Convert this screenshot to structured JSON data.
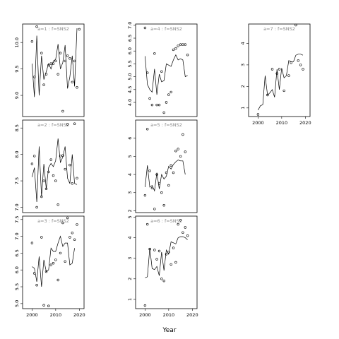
{
  "chart_data": {
    "type": "scatter",
    "xlabel": "Year",
    "xlim": [
      1996,
      2022
    ],
    "xticks": [
      2000,
      2010,
      2020
    ],
    "panels": [
      {
        "id": "a1",
        "title": "a=1 : f=SNS2",
        "ylim": [
          8.6,
          10.35
        ],
        "yticks": [
          9.0,
          9.5,
          10.0
        ],
        "points": [
          [
            2000,
            10.02
          ],
          [
            2001,
            9.35
          ],
          [
            2002,
            10.3
          ],
          [
            2004,
            9.8
          ],
          [
            2005,
            9.2
          ],
          [
            2006,
            9.4
          ],
          [
            2007,
            9.57
          ],
          [
            2008,
            9.6
          ],
          [
            2009,
            9.6
          ],
          [
            2010,
            9.65
          ],
          [
            2011,
            9.4
          ],
          [
            2012,
            9.8
          ],
          [
            2013,
            8.7
          ],
          [
            2014,
            9.65
          ],
          [
            2015,
            9.75
          ],
          [
            2016,
            9.7
          ],
          [
            2017,
            9.25
          ],
          [
            2018,
            9.65
          ],
          [
            2019,
            9.15
          ],
          [
            2020,
            10.25
          ]
        ],
        "line": [
          [
            2000,
            9.6
          ],
          [
            2001,
            8.97
          ],
          [
            2002,
            10.13
          ],
          [
            2003,
            9.0
          ],
          [
            2004,
            9.75
          ],
          [
            2005,
            9.3
          ],
          [
            2006,
            9.45
          ],
          [
            2007,
            9.6
          ],
          [
            2008,
            9.5
          ],
          [
            2009,
            9.65
          ],
          [
            2010,
            9.68
          ],
          [
            2011,
            9.97
          ],
          [
            2012,
            9.5
          ],
          [
            2013,
            9.62
          ],
          [
            2014,
            9.95
          ],
          [
            2015,
            9.13
          ],
          [
            2016,
            9.35
          ],
          [
            2017,
            9.75
          ],
          [
            2018,
            9.17
          ],
          [
            2019,
            10.27
          ]
        ]
      },
      {
        "id": "a4",
        "title": "a=4 : f=SNS2",
        "ylim": [
          3.45,
          7.05
        ],
        "yticks": [
          4.0,
          4.5,
          5.0,
          5.5,
          6.0,
          6.5,
          7.0
        ],
        "points": [
          [
            2000,
            6.9
          ],
          [
            2001,
            5.15
          ],
          [
            2002,
            4.15
          ],
          [
            2003,
            3.9
          ],
          [
            2004,
            5.9
          ],
          [
            2005,
            3.9
          ],
          [
            2006,
            3.9
          ],
          [
            2007,
            5.2
          ],
          [
            2008,
            3.6
          ],
          [
            2009,
            4.0
          ],
          [
            2010,
            4.3
          ],
          [
            2011,
            4.4
          ],
          [
            2012,
            6.05
          ],
          [
            2013,
            6.1
          ],
          [
            2014,
            6.2
          ],
          [
            2015,
            6.25
          ],
          [
            2016,
            6.25
          ],
          [
            2017,
            6.25
          ],
          [
            2018,
            5.85
          ]
        ],
        "line": [
          [
            2000,
            5.8
          ],
          [
            2001,
            4.7
          ],
          [
            2002,
            4.5
          ],
          [
            2003,
            4.4
          ],
          [
            2004,
            5.3
          ],
          [
            2005,
            4.3
          ],
          [
            2006,
            5.1
          ],
          [
            2007,
            4.8
          ],
          [
            2008,
            4.85
          ],
          [
            2009,
            5.5
          ],
          [
            2010,
            5.45
          ],
          [
            2011,
            5.4
          ],
          [
            2012,
            5.65
          ],
          [
            2013,
            5.85
          ],
          [
            2014,
            5.65
          ],
          [
            2015,
            5.7
          ],
          [
            2016,
            5.65
          ],
          [
            2017,
            5.0
          ],
          [
            2018,
            5.05
          ]
        ]
      },
      {
        "id": "a7",
        "title": "a=7 : f=SNS2",
        "ylim": [
          0.6,
          4.9
        ],
        "yticks": [
          1,
          2,
          3,
          4
        ],
        "points": [
          [
            2000,
            0.7
          ],
          [
            2004,
            1.6
          ],
          [
            2006,
            2.8
          ],
          [
            2008,
            2.6
          ],
          [
            2009,
            2.8
          ],
          [
            2011,
            1.8
          ],
          [
            2013,
            2.5
          ],
          [
            2014,
            3.1
          ],
          [
            2016,
            4.85
          ],
          [
            2017,
            3.2
          ],
          [
            2018,
            3.0
          ],
          [
            2019,
            2.8
          ]
        ],
        "line": [
          [
            2000,
            0.9
          ],
          [
            2001,
            1.1
          ],
          [
            2002,
            1.15
          ],
          [
            2003,
            2.5
          ],
          [
            2004,
            1.6
          ],
          [
            2005,
            1.7
          ],
          [
            2006,
            1.85
          ],
          [
            2007,
            1.5
          ],
          [
            2008,
            2.8
          ],
          [
            2009,
            1.85
          ],
          [
            2010,
            2.85
          ],
          [
            2011,
            2.4
          ],
          [
            2012,
            2.5
          ],
          [
            2013,
            3.2
          ],
          [
            2014,
            3.15
          ],
          [
            2015,
            3.15
          ],
          [
            2016,
            3.45
          ],
          [
            2017,
            3.5
          ],
          [
            2018,
            3.5
          ],
          [
            2019,
            3.45
          ]
        ]
      },
      {
        "id": "a2",
        "title": "a=2 : f=SNS2",
        "ylim": [
          6.9,
          8.65
        ],
        "yticks": [
          7.0,
          7.5,
          8.0,
          8.5
        ],
        "points": [
          [
            2000,
            7.82
          ],
          [
            2001,
            7.97
          ],
          [
            2002,
            7.0
          ],
          [
            2004,
            7.2
          ],
          [
            2005,
            7.5
          ],
          [
            2006,
            7.35
          ],
          [
            2007,
            7.67
          ],
          [
            2008,
            7.9
          ],
          [
            2009,
            7.6
          ],
          [
            2010,
            7.5
          ],
          [
            2011,
            7.05
          ],
          [
            2012,
            7.97
          ],
          [
            2013,
            7.98
          ],
          [
            2014,
            7.72
          ],
          [
            2015,
            8.57
          ],
          [
            2016,
            7.8
          ],
          [
            2017,
            7.45
          ],
          [
            2018,
            8.58
          ],
          [
            2019,
            7.55
          ]
        ],
        "line": [
          [
            2000,
            7.57
          ],
          [
            2001,
            7.75
          ],
          [
            2002,
            7.1
          ],
          [
            2003,
            8.15
          ],
          [
            2004,
            7.2
          ],
          [
            2005,
            7.82
          ],
          [
            2006,
            7.35
          ],
          [
            2007,
            7.75
          ],
          [
            2008,
            7.83
          ],
          [
            2009,
            7.77
          ],
          [
            2010,
            7.88
          ],
          [
            2011,
            8.3
          ],
          [
            2012,
            7.85
          ],
          [
            2013,
            7.95
          ],
          [
            2014,
            8.15
          ],
          [
            2015,
            7.55
          ],
          [
            2016,
            7.45
          ],
          [
            2017,
            8.0
          ],
          [
            2018,
            7.45
          ],
          [
            2019,
            7.43
          ]
        ]
      },
      {
        "id": "a5",
        "title": "a=5 : f=SNS2",
        "ylim": [
          1.9,
          7.0
        ],
        "yticks": [
          2,
          3,
          4,
          5,
          6
        ],
        "points": [
          [
            2000,
            2.85
          ],
          [
            2001,
            6.5
          ],
          [
            2002,
            4.2
          ],
          [
            2003,
            3.25
          ],
          [
            2004,
            2.1
          ],
          [
            2005,
            4.0
          ],
          [
            2006,
            3.5
          ],
          [
            2007,
            3.0
          ],
          [
            2008,
            2.3
          ],
          [
            2009,
            4.1
          ],
          [
            2010,
            3.4
          ],
          [
            2011,
            4.5
          ],
          [
            2012,
            4.1
          ],
          [
            2013,
            5.3
          ],
          [
            2014,
            5.4
          ],
          [
            2015,
            5.0
          ],
          [
            2016,
            6.2
          ],
          [
            2017,
            5.25
          ]
        ],
        "line": [
          [
            2000,
            3.3
          ],
          [
            2001,
            4.5
          ],
          [
            2002,
            3.3
          ],
          [
            2003,
            3.4
          ],
          [
            2004,
            3.1
          ],
          [
            2005,
            4.1
          ],
          [
            2006,
            3.2
          ],
          [
            2007,
            4.0
          ],
          [
            2008,
            3.75
          ],
          [
            2009,
            3.9
          ],
          [
            2010,
            4.45
          ],
          [
            2011,
            4.3
          ],
          [
            2012,
            4.55
          ],
          [
            2013,
            4.7
          ],
          [
            2014,
            4.8
          ],
          [
            2015,
            4.75
          ],
          [
            2016,
            4.75
          ],
          [
            2017,
            4.0
          ]
        ]
      },
      {
        "id": "a3",
        "title": "a=3 : f=SNS2",
        "ylim": [
          4.85,
          7.6
        ],
        "yticks": [
          5.0,
          5.5,
          6.0,
          6.5,
          7.0,
          7.5
        ],
        "points": [
          [
            2000,
            6.8
          ],
          [
            2001,
            5.9
          ],
          [
            2002,
            5.55
          ],
          [
            2004,
            6.97
          ],
          [
            2005,
            4.95
          ],
          [
            2006,
            5.95
          ],
          [
            2007,
            4.93
          ],
          [
            2008,
            6.15
          ],
          [
            2009,
            6.2
          ],
          [
            2010,
            6.3
          ],
          [
            2011,
            5.7
          ],
          [
            2012,
            6.5
          ],
          [
            2013,
            7.4
          ],
          [
            2014,
            6.25
          ],
          [
            2015,
            7.55
          ],
          [
            2016,
            6.97
          ],
          [
            2017,
            7.1
          ],
          [
            2018,
            6.9
          ],
          [
            2019,
            7.35
          ]
        ],
        "line": [
          [
            2000,
            6.1
          ],
          [
            2001,
            6.05
          ],
          [
            2002,
            5.65
          ],
          [
            2003,
            6.4
          ],
          [
            2004,
            5.5
          ],
          [
            2005,
            6.3
          ],
          [
            2006,
            5.95
          ],
          [
            2007,
            6.0
          ],
          [
            2008,
            6.65
          ],
          [
            2009,
            6.55
          ],
          [
            2010,
            6.55
          ],
          [
            2011,
            6.8
          ],
          [
            2012,
            7.0
          ],
          [
            2013,
            6.7
          ],
          [
            2014,
            6.8
          ],
          [
            2015,
            6.8
          ],
          [
            2016,
            6.15
          ],
          [
            2017,
            6.2
          ],
          [
            2018,
            6.65
          ]
        ]
      },
      {
        "id": "a6",
        "title": "a=6 : f=SNS2",
        "ylim": [
          0.55,
          5.05
        ],
        "yticks": [
          1,
          2,
          3,
          4,
          5
        ],
        "points": [
          [
            2000,
            0.7
          ],
          [
            2001,
            4.65
          ],
          [
            2002,
            3.45
          ],
          [
            2004,
            3.4
          ],
          [
            2005,
            2.95
          ],
          [
            2006,
            3.35
          ],
          [
            2007,
            2.0
          ],
          [
            2008,
            1.9
          ],
          [
            2009,
            3.2
          ],
          [
            2010,
            3.3
          ],
          [
            2011,
            2.7
          ],
          [
            2012,
            3.5
          ],
          [
            2013,
            2.8
          ],
          [
            2014,
            4.65
          ],
          [
            2015,
            4.85
          ],
          [
            2016,
            4.25
          ],
          [
            2017,
            4.5
          ],
          [
            2018,
            4.1
          ]
        ],
        "line": [
          [
            2000,
            2.05
          ],
          [
            2001,
            2.1
          ],
          [
            2002,
            3.5
          ],
          [
            2003,
            2.5
          ],
          [
            2004,
            2.45
          ],
          [
            2005,
            2.6
          ],
          [
            2006,
            2.15
          ],
          [
            2007,
            3.3
          ],
          [
            2008,
            2.4
          ],
          [
            2009,
            3.4
          ],
          [
            2010,
            3.2
          ],
          [
            2011,
            3.8
          ],
          [
            2012,
            3.75
          ],
          [
            2013,
            3.7
          ],
          [
            2014,
            4.0
          ],
          [
            2015,
            4.05
          ],
          [
            2016,
            4.05
          ],
          [
            2017,
            4.0
          ],
          [
            2018,
            3.9
          ]
        ]
      }
    ]
  }
}
